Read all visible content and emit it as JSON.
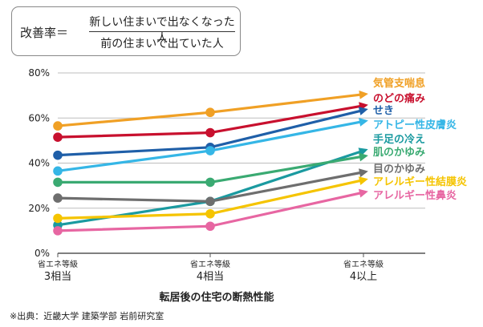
{
  "formula": {
    "label": "改善率＝",
    "numerator": "新しい住まいで出なくなった人",
    "denominator": "前の住まいで出ていた人"
  },
  "source": "※出典：近畿大学 建築学部 岩前研究室",
  "chart_data": {
    "type": "line",
    "xlabel": "転居後の住宅の断熱性能",
    "ylabel": "",
    "ylim": [
      0,
      80
    ],
    "yticks": [
      "0%",
      "20%",
      "40%",
      "60%",
      "80%"
    ],
    "yticks_values": [
      0,
      20,
      40,
      60,
      80
    ],
    "grid": true,
    "legend": "right-end labels",
    "categories": [
      {
        "top": "省エネ等級",
        "bottom": "3相当"
      },
      {
        "top": "省エネ等級",
        "bottom": "4相当"
      },
      {
        "top": "省エネ等級",
        "bottom": "4以上"
      }
    ],
    "series": [
      {
        "name": "気管支喘息",
        "color": "#f0a025",
        "values": [
          56.5,
          62.5,
          70.5
        ]
      },
      {
        "name": "のどの痛み",
        "color": "#c8102e",
        "values": [
          51.5,
          53.5,
          65.5
        ]
      },
      {
        "name": "せき",
        "color": "#1f5fa8",
        "values": [
          43.5,
          47,
          63.5
        ]
      },
      {
        "name": "アトピー性皮膚炎",
        "color": "#35b6e6",
        "values": [
          36.5,
          45.5,
          58.5
        ]
      },
      {
        "name": "手足の冷え",
        "color": "#1a9aa0",
        "values": [
          12.5,
          23,
          45.5
        ]
      },
      {
        "name": "肌のかゆみ",
        "color": "#3aaa72",
        "values": [
          31.5,
          31.5,
          43
        ]
      },
      {
        "name": "目のかゆみ",
        "color": "#6e6e6e",
        "values": [
          24.5,
          23,
          36
        ]
      },
      {
        "name": "アレルギー性結膜炎",
        "color": "#f5c400",
        "values": [
          15.5,
          17.5,
          32.5
        ]
      },
      {
        "name": "アレルギー性鼻炎",
        "color": "#e766a2",
        "values": [
          10,
          12,
          27
        ]
      }
    ]
  }
}
